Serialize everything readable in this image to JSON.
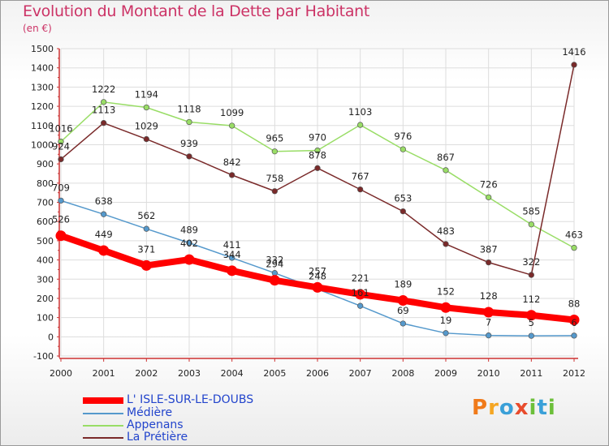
{
  "title": "Evolution du Montant de la Dette par Habitant",
  "subtitle": "(en €)",
  "logo": {
    "text": "Proxiti",
    "colors": [
      "#f07a1a",
      "#f5a623",
      "#3aa0d8",
      "#e84b2c",
      "#6cbf3a",
      "#3aa0d8",
      "#6cbf3a"
    ]
  },
  "chart_data": {
    "type": "line",
    "x": [
      "2000",
      "2001",
      "2002",
      "2003",
      "2004",
      "2005",
      "2006",
      "2007",
      "2008",
      "2009",
      "2010",
      "2011",
      "2012"
    ],
    "ylim": [
      -100,
      1500
    ],
    "yticks": [
      "-100",
      "0",
      "100",
      "200",
      "300",
      "400",
      "500",
      "600",
      "700",
      "800",
      "900",
      "1000",
      "1100",
      "1200",
      "1300",
      "1400",
      "1500"
    ],
    "grid": true,
    "legend_position": "bottom-left",
    "series": [
      {
        "name": "L' ISLE-SUR-LE-DOUBS",
        "color": "#ff0000",
        "values": [
          526,
          449,
          371,
          402,
          344,
          294,
          257,
          221,
          189,
          152,
          128,
          112,
          88
        ],
        "labels": [
          "526",
          "449",
          "371",
          "402",
          "344",
          "294",
          "257",
          "221",
          "189",
          "152",
          "128",
          "112",
          "88"
        ]
      },
      {
        "name": "Médière",
        "color": "#5599cc",
        "values": [
          709,
          638,
          562,
          489,
          411,
          332,
          248,
          161,
          69,
          19,
          7,
          5,
          6
        ],
        "labels": [
          "709",
          "638",
          "562",
          "489",
          "411",
          "332",
          "248",
          "161",
          "69",
          "19",
          "7",
          "5",
          "6"
        ]
      },
      {
        "name": "Appenans",
        "color": "#99dd66",
        "values": [
          1016,
          1222,
          1194,
          1118,
          1099,
          965,
          970,
          1103,
          976,
          867,
          726,
          585,
          463
        ],
        "labels": [
          "1016",
          "1222",
          "1194",
          "1118",
          "1099",
          "965",
          "970",
          "1103",
          "976",
          "867",
          "726",
          "585",
          "463"
        ]
      },
      {
        "name": "La Prétière",
        "color": "#7a2a2a",
        "values": [
          924,
          1113,
          1029,
          939,
          842,
          758,
          878,
          767,
          653,
          483,
          387,
          322,
          1416
        ],
        "labels": [
          "924",
          "1113",
          "1029",
          "939",
          "842",
          "758",
          "878",
          "767",
          "653",
          "483",
          "387",
          "322",
          "1416"
        ]
      }
    ]
  }
}
